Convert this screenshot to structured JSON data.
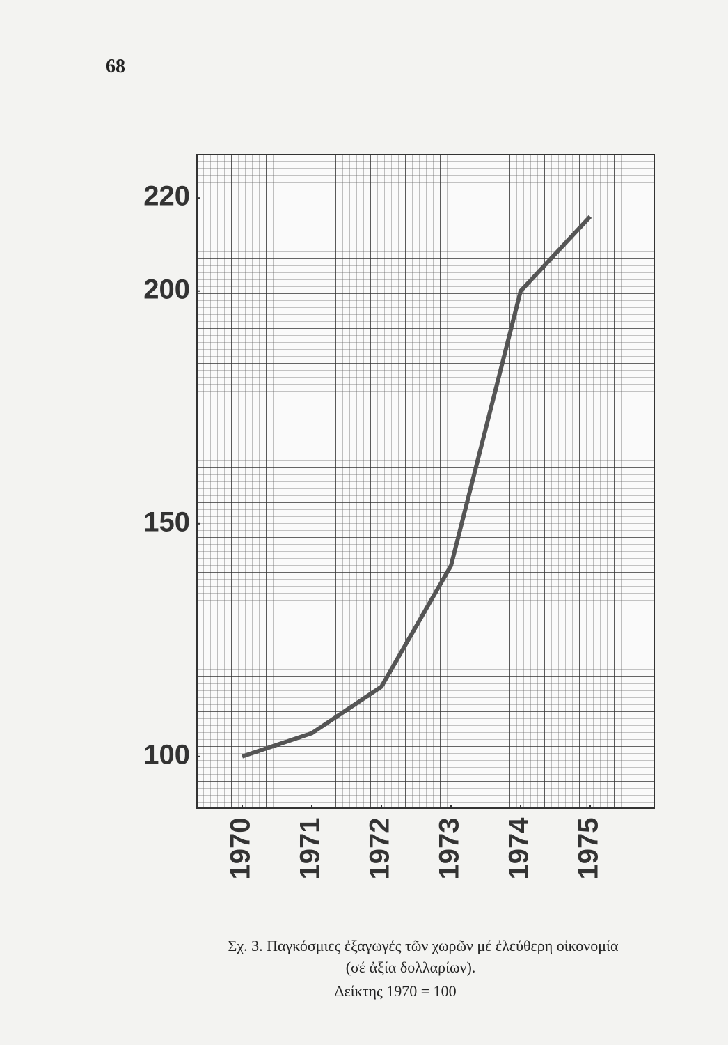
{
  "page_number": "68",
  "chart_data": {
    "type": "line",
    "x": [
      1970,
      1971,
      1972,
      1973,
      1974,
      1975
    ],
    "values": [
      100,
      105,
      115,
      141,
      200,
      216
    ],
    "color": "#555555",
    "xlim": [
      1969.35,
      1975.92
    ],
    "ylim": [
      88.9,
      229.3
    ],
    "xticks": [
      1970,
      1971,
      1972,
      1973,
      1974,
      1975
    ],
    "yticks": [
      100,
      150,
      200,
      220
    ],
    "caption_lines": [
      "Σχ. 3. Παγκόσμιες ἐξαγωγές τῶν χωρῶν μέ ἐλεύθερη οἰκονομία",
      "(σέ ἀξία δολλαρίων).",
      "Δείκτης 1970 = 100"
    ]
  }
}
